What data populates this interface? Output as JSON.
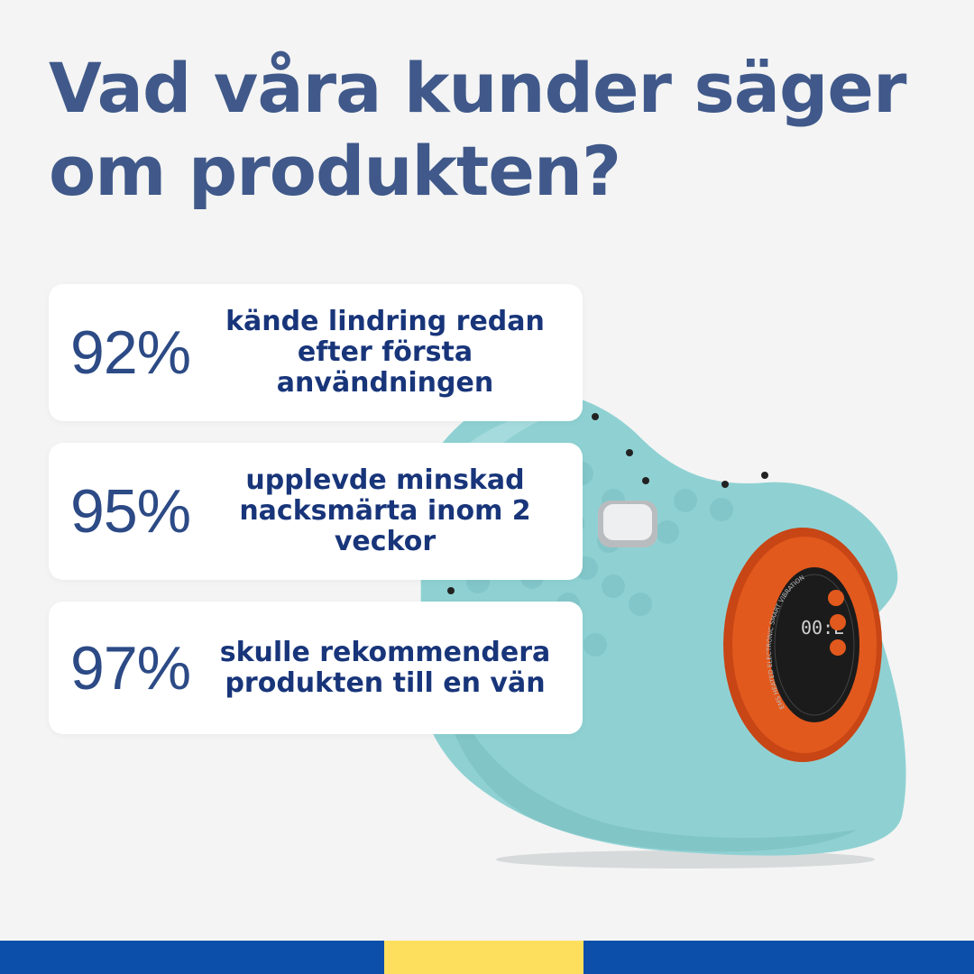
{
  "headline": {
    "line1": "Vad våra kunder säger",
    "line2": "om produkten?"
  },
  "stats": [
    {
      "value": "92%",
      "text": "kände lindring redan efter första användningen"
    },
    {
      "value": "95%",
      "text": "upplevde minskad nacksmärta inom 2 veckor"
    },
    {
      "value": "97%",
      "text": "skulle rekommendera produkten till en vän"
    }
  ],
  "product_image": {
    "icon": "neck-massage-pillow-image",
    "device_display": "00:E",
    "ring_text": "EMS HEATED ELECTRONIC SMART VIBRATION MASSAGE PILLOW"
  },
  "colors": {
    "headline": "#40598a",
    "percent": "#2c4a85",
    "stat_text": "#18357a",
    "background": "#f4f4f4",
    "card": "#ffffff",
    "pillow": "#8fd1d3",
    "ring": "#e2591d",
    "flag_blue": "#0b4fab",
    "flag_yellow": "#fedf5d"
  }
}
